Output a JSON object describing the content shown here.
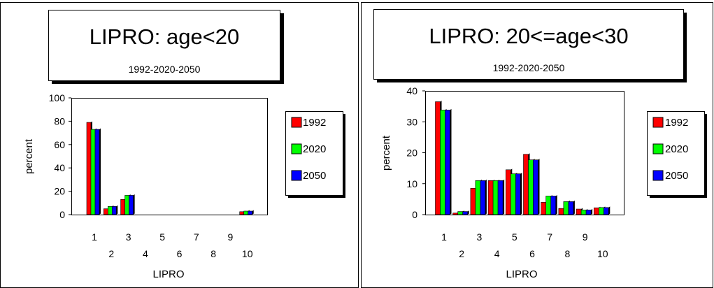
{
  "colors": {
    "1992": "#ff0000",
    "2020": "#00ff00",
    "2050": "#0000ff",
    "bar_side": "#000000"
  },
  "chart_data": [
    {
      "type": "bar",
      "title": "LIPRO: age<20",
      "subtitle": "1992-2020-2050",
      "xlabel": "LIPRO",
      "ylabel": "percent",
      "ylim": [
        0,
        100
      ],
      "yticks": [
        "0",
        "20",
        "40",
        "60",
        "80",
        "100"
      ],
      "categories": [
        "1",
        "2",
        "3",
        "4",
        "5",
        "6",
        "7",
        "8",
        "9",
        "10"
      ],
      "grid": false,
      "legend_position": "right",
      "series": [
        {
          "name": "1992",
          "values": [
            79,
            5,
            13,
            0,
            0,
            0,
            0,
            0,
            0,
            2.5
          ]
        },
        {
          "name": "2020",
          "values": [
            73,
            7,
            16.5,
            0,
            0,
            0,
            0,
            0,
            0,
            3
          ]
        },
        {
          "name": "2050",
          "values": [
            73,
            7,
            16.5,
            0,
            0,
            0,
            0,
            0,
            0,
            3
          ]
        }
      ]
    },
    {
      "type": "bar",
      "title": "LIPRO: 20<=age<30",
      "subtitle": "1992-2020-2050",
      "xlabel": "LIPRO",
      "ylabel": "percent",
      "ylim": [
        0,
        40
      ],
      "yticks": [
        "0",
        "10",
        "20",
        "30",
        "40"
      ],
      "categories": [
        "1",
        "2",
        "3",
        "4",
        "5",
        "6",
        "7",
        "8",
        "9",
        "10"
      ],
      "grid": false,
      "legend_position": "right",
      "series": [
        {
          "name": "1992",
          "values": [
            36.5,
            0.5,
            8.5,
            11,
            14.5,
            19.5,
            4,
            2,
            1.8,
            2.2
          ]
        },
        {
          "name": "2020",
          "values": [
            33.8,
            1,
            11,
            11,
            13.2,
            17.7,
            6,
            4.2,
            1.5,
            2.3
          ]
        },
        {
          "name": "2050",
          "values": [
            33.8,
            1,
            11,
            11,
            13.2,
            17.7,
            6,
            4.2,
            1.5,
            2.3
          ]
        }
      ]
    }
  ]
}
